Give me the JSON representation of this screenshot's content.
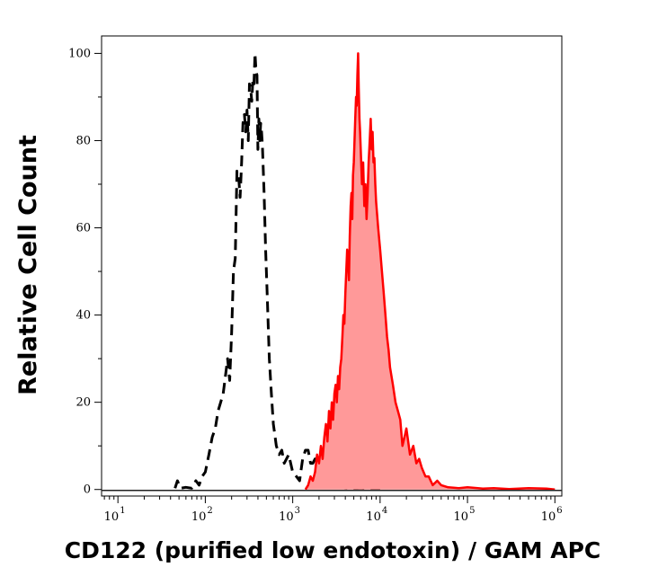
{
  "chart_data": {
    "type": "area",
    "title": "",
    "xlabel": "CD122 (purified low endotoxin) / GAM APC",
    "ylabel": "Relative Cell Count",
    "x_scale": "log",
    "xlim": [
      6.5,
      1200000
    ],
    "ylim": [
      -1.5,
      104
    ],
    "x_ticks": [
      {
        "base": "10",
        "exp": "1",
        "value": 10
      },
      {
        "base": "10",
        "exp": "2",
        "value": 100
      },
      {
        "base": "10",
        "exp": "3",
        "value": 1000
      },
      {
        "base": "10",
        "exp": "4",
        "value": 10000
      },
      {
        "base": "10",
        "exp": "5",
        "value": 100000
      },
      {
        "base": "10",
        "exp": "6",
        "value": 1000000
      }
    ],
    "y_ticks": [
      "0",
      "20",
      "40",
      "60",
      "80",
      "100"
    ],
    "grid": false,
    "legend": "none",
    "series": [
      {
        "style": "dashed",
        "color": "#000000",
        "fill": "none",
        "x": [
          45,
          48,
          52,
          60,
          70,
          78,
          85,
          92,
          100,
          110,
          120,
          130,
          140,
          150,
          160,
          170,
          180,
          190,
          200,
          210,
          220,
          230,
          240,
          250,
          260,
          270,
          280,
          290,
          300,
          310,
          320,
          330,
          340,
          350,
          360,
          370,
          380,
          390,
          400,
          410,
          420,
          430,
          440,
          450,
          470,
          490,
          510,
          540,
          570,
          600,
          650,
          700,
          750,
          800,
          900,
          1000,
          1100,
          1200,
          1300,
          1400,
          1500,
          1600,
          1700,
          1800,
          2000,
          2200,
          2500,
          3000,
          3500,
          4000,
          5000,
          6000,
          8000,
          10000
        ],
        "y": [
          0.3,
          2,
          0.3,
          0.5,
          0.3,
          2,
          1,
          3,
          4,
          8,
          12,
          14,
          18,
          20,
          22,
          26,
          30,
          25,
          36,
          50,
          53,
          73,
          72,
          67,
          75,
          84,
          86,
          82,
          87,
          80,
          93,
          92,
          89,
          94,
          93,
          100,
          96,
          95,
          78,
          85,
          80,
          84,
          82,
          79,
          68,
          55,
          45,
          30,
          22,
          15,
          10,
          8,
          9,
          6,
          8,
          4,
          3,
          2,
          7,
          9,
          9,
          6,
          6,
          7,
          3,
          1,
          1,
          0.5,
          0.5,
          0.3,
          0.2,
          0.3,
          0.1,
          0
        ]
      },
      {
        "style": "solid",
        "color": "#ff0000",
        "fill": "#ff9999",
        "x": [
          1400,
          1500,
          1600,
          1700,
          1800,
          1900,
          2000,
          2100,
          2200,
          2300,
          2400,
          2500,
          2600,
          2700,
          2800,
          2900,
          3000,
          3100,
          3200,
          3300,
          3400,
          3500,
          3600,
          3700,
          3800,
          3900,
          4000,
          4100,
          4200,
          4300,
          4400,
          4500,
          4600,
          4700,
          4800,
          4900,
          5000,
          5100,
          5200,
          5300,
          5400,
          5500,
          5600,
          5700,
          5800,
          5900,
          6000,
          6200,
          6400,
          6600,
          6800,
          7000,
          7200,
          7400,
          7600,
          7800,
          8000,
          8200,
          8400,
          8600,
          8800,
          9000,
          9500,
          10000,
          10500,
          11000,
          11500,
          12000,
          12500,
          13000,
          14000,
          15000,
          16000,
          17000,
          18000,
          19000,
          20000,
          22000,
          24000,
          26000,
          28000,
          30000,
          33000,
          36000,
          40000,
          45000,
          50000,
          60000,
          80000,
          100000,
          150000,
          200000,
          300000,
          500000,
          800000,
          1000000
        ],
        "y": [
          0,
          1,
          3,
          2,
          4,
          8,
          6,
          10,
          7,
          12,
          15,
          11,
          18,
          14,
          20,
          16,
          22,
          24,
          20,
          26,
          23,
          28,
          30,
          35,
          40,
          38,
          45,
          50,
          55,
          52,
          48,
          58,
          65,
          68,
          62,
          72,
          75,
          80,
          85,
          90,
          88,
          95,
          100,
          92,
          85,
          82,
          78,
          70,
          75,
          65,
          70,
          62,
          68,
          75,
          80,
          85,
          78,
          82,
          75,
          76,
          70,
          66,
          60,
          55,
          50,
          45,
          40,
          35,
          32,
          28,
          24,
          20,
          18,
          16,
          10,
          12,
          14,
          8,
          10,
          6,
          7,
          5,
          3,
          3,
          1,
          2,
          1,
          0.5,
          0.3,
          0.5,
          0.2,
          0.3,
          0.1,
          0.3,
          0.2,
          0
        ]
      }
    ]
  }
}
